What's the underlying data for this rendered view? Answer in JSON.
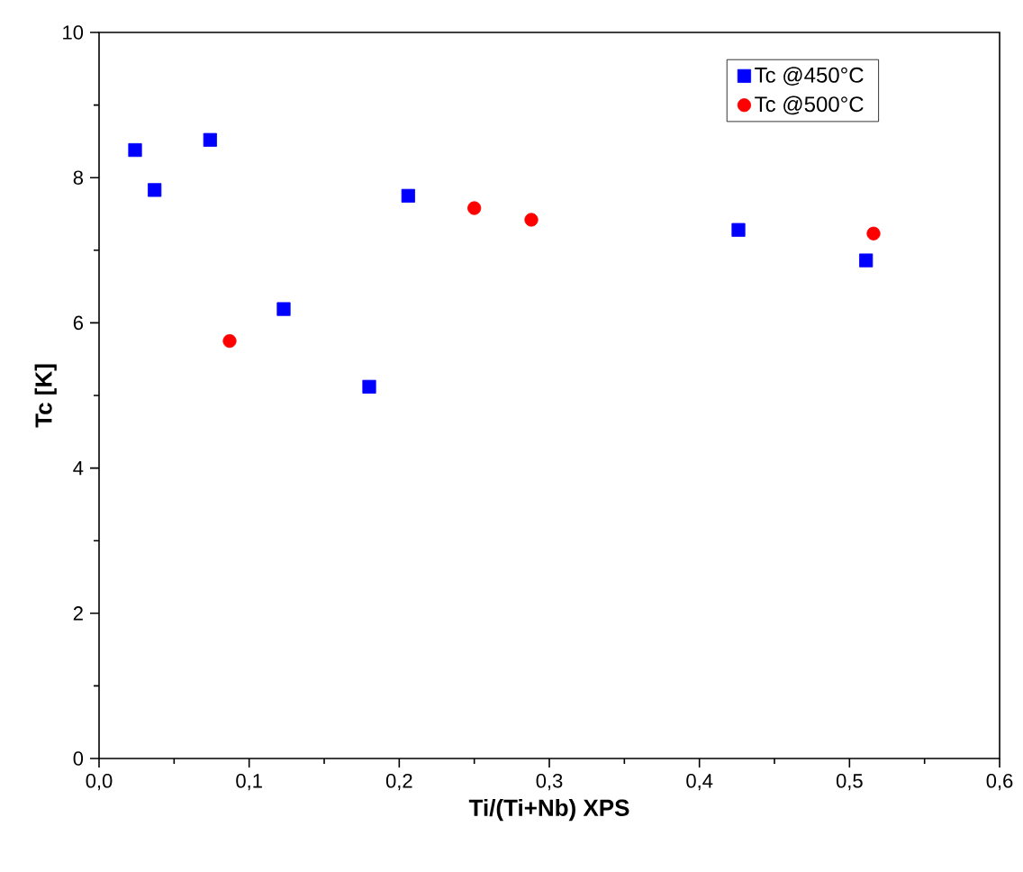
{
  "chart_data": {
    "type": "scatter",
    "xlabel": "Ti/(Ti+Nb) XPS",
    "ylabel": "Tc [K]",
    "xlim": [
      0,
      0.6
    ],
    "ylim": [
      0,
      10
    ],
    "xticks": [
      {
        "value": 0,
        "label": "0,0"
      },
      {
        "value": 0.1,
        "label": "0,1"
      },
      {
        "value": 0.2,
        "label": "0,2"
      },
      {
        "value": 0.3,
        "label": "0,3"
      },
      {
        "value": 0.4,
        "label": "0,4"
      },
      {
        "value": 0.5,
        "label": "0,5"
      },
      {
        "value": 0.6,
        "label": "0,6"
      }
    ],
    "yticks": [
      0,
      2,
      4,
      6,
      8,
      10
    ],
    "grid": false,
    "legend": "top right",
    "series": [
      {
        "name": "Tc @450°C",
        "color": "#0000ff",
        "marker": "square",
        "x": [
          0.024,
          0.037,
          0.074,
          0.123,
          0.18,
          0.206,
          0.426,
          0.511
        ],
        "values": [
          8.38,
          7.83,
          8.52,
          6.19,
          5.12,
          7.75,
          7.28,
          6.86
        ]
      },
      {
        "name": "Tc @500°C",
        "color": "#ff0000",
        "marker": "circle",
        "x": [
          0.087,
          0.25,
          0.288,
          0.516
        ],
        "values": [
          5.75,
          7.58,
          7.42,
          7.23
        ]
      }
    ]
  }
}
